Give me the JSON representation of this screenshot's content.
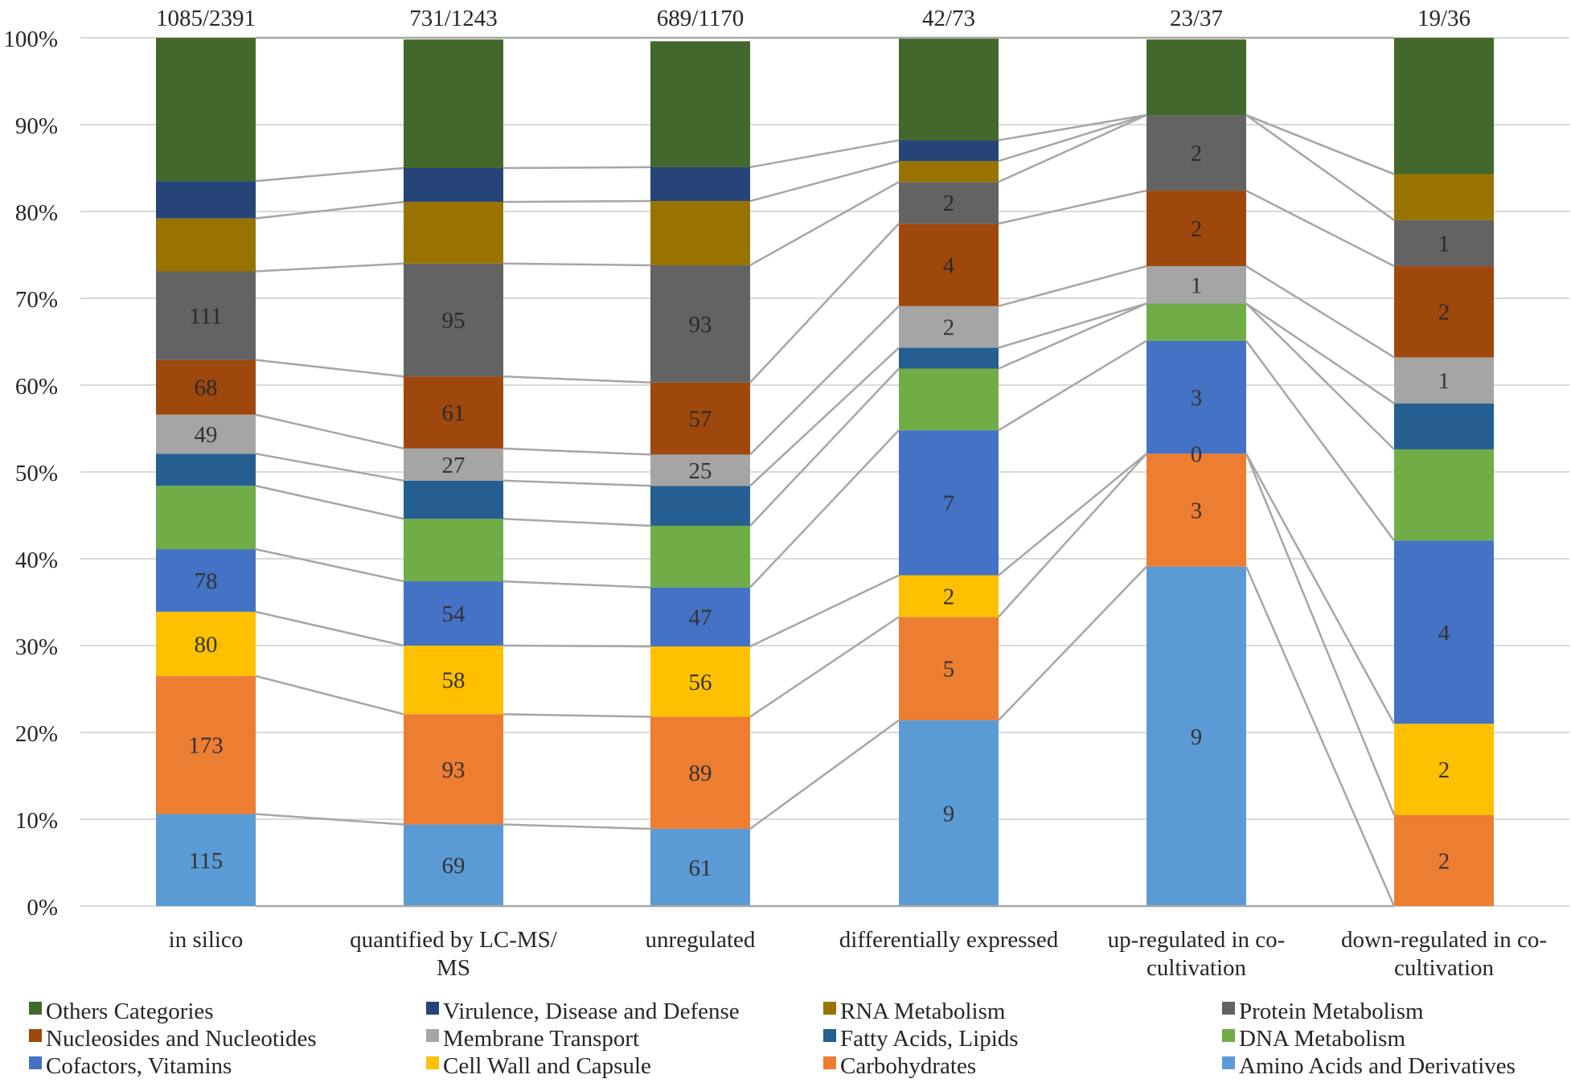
{
  "chart_data": {
    "type": "bar",
    "stacked": true,
    "percent_stacked": true,
    "title": "",
    "xlabel": "",
    "ylabel": "",
    "ylim": [
      0,
      100
    ],
    "y_ticks": [
      "0%",
      "10%",
      "20%",
      "30%",
      "40%",
      "50%",
      "60%",
      "70%",
      "80%",
      "90%",
      "100%"
    ],
    "grid": true,
    "legend_position": "bottom",
    "categories": [
      "in silico",
      "quantified by LC-MS/MS",
      "unregulated",
      "differentially expressed",
      "up-regulated in co-cultivation",
      "down-regulated in co-cultivation"
    ],
    "category_lines": [
      [
        "in silico"
      ],
      [
        "quantified by LC-MS/",
        "MS"
      ],
      [
        "unregulated"
      ],
      [
        "differentially expressed"
      ],
      [
        "up-regulated in co-",
        "cultivation"
      ],
      [
        "down-regulated in co-",
        "cultivation"
      ]
    ],
    "totals": [
      "1085/2391",
      "731/1243",
      "689/1170",
      "42/73",
      "23/37",
      "19/36"
    ],
    "series": [
      {
        "name": "Amino Acids and Derivatives",
        "color": "#5B9BD5",
        "values": [
          10.6,
          9.4,
          8.9,
          21.4,
          39.1,
          0
        ],
        "labels": [
          "115",
          "69",
          "61",
          "9",
          "9",
          ""
        ]
      },
      {
        "name": "Carbohydrates",
        "color": "#ED7D31",
        "values": [
          15.9,
          12.7,
          12.9,
          11.9,
          13.0,
          10.5
        ],
        "labels": [
          "173",
          "93",
          "89",
          "5",
          "3",
          "2"
        ]
      },
      {
        "name": "Cell Wall and Capsule",
        "color": "#FFC000",
        "values": [
          7.4,
          7.9,
          8.1,
          4.8,
          0,
          10.5
        ],
        "labels": [
          "80",
          "58",
          "56",
          "2",
          "0",
          "2"
        ]
      },
      {
        "name": "Cofactors, Vitamins",
        "color": "#4472C4",
        "values": [
          7.2,
          7.4,
          6.8,
          16.7,
          13.0,
          21.1
        ],
        "labels": [
          "78",
          "54",
          "47",
          "7",
          "3",
          "4"
        ]
      },
      {
        "name": "DNA Metabolism",
        "color": "#70AD47",
        "values": [
          7.3,
          7.2,
          7.1,
          7.1,
          4.3,
          10.5
        ],
        "labels": [
          "",
          "",
          "",
          "",
          "",
          ""
        ]
      },
      {
        "name": "Fatty Acids, Lipids",
        "color": "#255E91",
        "values": [
          3.7,
          4.4,
          4.6,
          2.4,
          0,
          5.3
        ],
        "labels": [
          "",
          "",
          "",
          "",
          "",
          ""
        ]
      },
      {
        "name": "Membrane Transport",
        "color": "#A5A5A5",
        "values": [
          4.5,
          3.7,
          3.6,
          4.8,
          4.3,
          5.3
        ],
        "labels": [
          "49",
          "27",
          "25",
          "2",
          "1",
          "1"
        ]
      },
      {
        "name": "Nucleosides and Nucleotides",
        "color": "#9E480E",
        "values": [
          6.3,
          8.3,
          8.3,
          9.5,
          8.7,
          10.5
        ],
        "labels": [
          "68",
          "61",
          "57",
          "4",
          "2",
          "2"
        ]
      },
      {
        "name": "Protein Metabolism",
        "color": "#636363",
        "values": [
          10.2,
          13.0,
          13.5,
          4.8,
          8.7,
          5.3
        ],
        "labels": [
          "111",
          "95",
          "93",
          "2",
          "2",
          "1"
        ]
      },
      {
        "name": "RNA Metabolism",
        "color": "#997300",
        "values": [
          6.1,
          7.1,
          7.4,
          2.4,
          0,
          5.3
        ],
        "labels": [
          "",
          "",
          "",
          "",
          "",
          ""
        ]
      },
      {
        "name": "Virulence, Disease and Defense",
        "color": "#264478",
        "values": [
          4.3,
          3.9,
          3.9,
          2.4,
          0,
          0
        ],
        "labels": [
          "",
          "",
          "",
          "",
          "",
          ""
        ]
      },
      {
        "name": "Others Categories",
        "color": "#43682B",
        "values": [
          16.5,
          14.8,
          14.5,
          11.9,
          8.7,
          15.7
        ],
        "labels": [
          "",
          "",
          "",
          "",
          "",
          ""
        ]
      }
    ],
    "legend_order": [
      "Others Categories",
      "Virulence, Disease and Defense",
      "RNA Metabolism",
      "Protein Metabolism",
      "Nucleosides and Nucleotides",
      "Membrane Transport",
      "Fatty Acids, Lipids",
      "DNA Metabolism",
      "Cofactors, Vitamins",
      "Cell Wall and Capsule",
      "Carbohydrates",
      "Amino Acids and Derivatives"
    ],
    "series_lines": true
  }
}
